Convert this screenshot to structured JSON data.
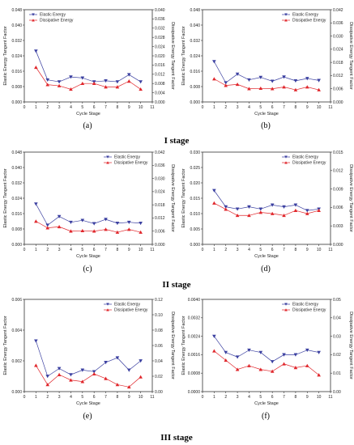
{
  "colors": {
    "elastic": "#3a3fa0",
    "dissipative": "#e0262b",
    "axis": "#333333"
  },
  "stage_labels": [
    "I stage",
    "II stage",
    "III stage"
  ],
  "panel_labels": [
    "(a)",
    "(b)",
    "(c)",
    "(d)",
    "(e)",
    "(f)"
  ],
  "chart_data": [
    {
      "panel": "(a)",
      "type": "line",
      "xlabel": "Cycle Stage",
      "ylabel_left": "Elastic Energy Tangent Factor",
      "ylabel_right": "Dissipative Energy Tangent Factor",
      "xlim": [
        0,
        11
      ],
      "xticks": [
        "0",
        "1",
        "2",
        "3",
        "4",
        "5",
        "6",
        "7",
        "8",
        "9",
        "10",
        "11"
      ],
      "ylim_left": [
        0,
        0.048
      ],
      "yticks_left": [
        "0.000",
        "0.008",
        "0.016",
        "0.024",
        "0.032",
        "0.040",
        "0.048"
      ],
      "ylim_right": [
        0,
        0.04
      ],
      "yticks_right": [
        "0.000",
        "0.004",
        "0.008",
        "0.012",
        "0.016",
        "0.020",
        "0.024",
        "0.028",
        "0.032",
        "0.036",
        "0.040"
      ],
      "legend": [
        "Elastic Energy",
        "Dissipative Energy"
      ],
      "legend_position": "top-left",
      "series": [
        {
          "name": "Elastic Energy",
          "axis": "left",
          "x": [
            1,
            2,
            3,
            4,
            5,
            6,
            7,
            8,
            9,
            10
          ],
          "values": [
            0.0265,
            0.0115,
            0.0105,
            0.013,
            0.0125,
            0.0105,
            0.011,
            0.0105,
            0.0142,
            0.0105
          ]
        },
        {
          "name": "Dissipative Energy",
          "axis": "right",
          "x": [
            1,
            2,
            3,
            4,
            5,
            6,
            7,
            8,
            9,
            10
          ],
          "values": [
            0.015,
            0.0075,
            0.007,
            0.0055,
            0.008,
            0.008,
            0.0065,
            0.0065,
            0.009,
            0.0055
          ]
        }
      ]
    },
    {
      "panel": "(b)",
      "type": "line",
      "xlabel": "Cycle Stage",
      "ylabel_left": "Elastic Energy Tangent Factor",
      "ylabel_right": "Dissipative Energy Tangent Factor",
      "xlim": [
        0,
        11
      ],
      "xticks": [
        "0",
        "1",
        "2",
        "3",
        "4",
        "5",
        "6",
        "7",
        "8",
        "9",
        "10",
        "11"
      ],
      "ylim_left": [
        0,
        0.048
      ],
      "yticks_left": [
        "0.000",
        "0.008",
        "0.016",
        "0.024",
        "0.032",
        "0.040",
        "0.048"
      ],
      "ylim_right": [
        0,
        0.042
      ],
      "yticks_right": [
        "0.000",
        "0.006",
        "0.012",
        "0.018",
        "0.024",
        "0.030",
        "0.036",
        "0.042"
      ],
      "legend": [
        "Elastic Energy",
        "Dissipative Energy"
      ],
      "legend_position": "top-right",
      "series": [
        {
          "name": "Elastic Energy",
          "axis": "left",
          "x": [
            1,
            2,
            3,
            4,
            5,
            6,
            7,
            8,
            9,
            10
          ],
          "values": [
            0.021,
            0.01,
            0.0145,
            0.0115,
            0.0128,
            0.0108,
            0.013,
            0.011,
            0.0122,
            0.0112
          ]
        },
        {
          "name": "Dissipative Energy",
          "axis": "right",
          "x": [
            1,
            2,
            3,
            4,
            5,
            6,
            7,
            8,
            9,
            10
          ],
          "values": [
            0.0105,
            0.0075,
            0.008,
            0.006,
            0.0062,
            0.006,
            0.0068,
            0.0055,
            0.0068,
            0.0055
          ]
        }
      ]
    },
    {
      "panel": "(c)",
      "type": "line",
      "xlabel": "Cycle Stage",
      "ylabel_left": "Elastic Energy Tangent Factor",
      "ylabel_right": "Dissipative Energy Tangent Factor",
      "xlim": [
        0,
        11
      ],
      "xticks": [
        "0",
        "1",
        "2",
        "3",
        "4",
        "5",
        "6",
        "7",
        "8",
        "9",
        "10",
        "11"
      ],
      "ylim_left": [
        0,
        0.048
      ],
      "yticks_left": [
        "0.000",
        "0.008",
        "0.016",
        "0.024",
        "0.032",
        "0.040",
        "0.048"
      ],
      "ylim_right": [
        0,
        0.042
      ],
      "yticks_right": [
        "0.000",
        "0.006",
        "0.012",
        "0.018",
        "0.024",
        "0.030",
        "0.036",
        "0.042"
      ],
      "legend": [
        "Elastic Energy",
        "Dissipative Energy"
      ],
      "legend_position": "top-right",
      "series": [
        {
          "name": "Elastic Energy",
          "axis": "left",
          "x": [
            1,
            2,
            3,
            4,
            5,
            6,
            7,
            8,
            9,
            10
          ],
          "values": [
            0.021,
            0.01,
            0.0145,
            0.0115,
            0.0125,
            0.0108,
            0.013,
            0.011,
            0.0115,
            0.011
          ]
        },
        {
          "name": "Dissipative Energy",
          "axis": "right",
          "x": [
            1,
            2,
            3,
            4,
            5,
            6,
            7,
            8,
            9,
            10
          ],
          "values": [
            0.0105,
            0.0075,
            0.008,
            0.006,
            0.0062,
            0.006,
            0.0068,
            0.0055,
            0.0068,
            0.0055
          ]
        }
      ]
    },
    {
      "panel": "(d)",
      "type": "line",
      "xlabel": "Cycle Stage",
      "ylabel_left": "Elastic Energy Tangent Factor",
      "ylabel_right": "Dissipative Energy Tangent Factor",
      "xlim": [
        0,
        11
      ],
      "xticks": [
        "0",
        "1",
        "2",
        "3",
        "4",
        "5",
        "6",
        "7",
        "8",
        "9",
        "10",
        "11"
      ],
      "ylim_left": [
        0,
        0.03
      ],
      "yticks_left": [
        "0.000",
        "0.005",
        "0.010",
        "0.015",
        "0.020",
        "0.025",
        "0.030"
      ],
      "ylim_right": [
        0,
        0.015
      ],
      "yticks_right": [
        "0.000",
        "0.003",
        "0.006",
        "0.009",
        "0.012",
        "0.015"
      ],
      "legend": [
        "Elastic Energy",
        "Dissipative Energy"
      ],
      "legend_position": "top-right",
      "series": [
        {
          "name": "Elastic Energy",
          "axis": "left",
          "x": [
            1,
            2,
            3,
            4,
            5,
            6,
            7,
            8,
            9,
            10
          ],
          "values": [
            0.0175,
            0.0122,
            0.0115,
            0.0122,
            0.0115,
            0.0128,
            0.0122,
            0.0128,
            0.011,
            0.0115
          ]
        },
        {
          "name": "Dissipative Energy",
          "axis": "right",
          "x": [
            1,
            2,
            3,
            4,
            5,
            6,
            7,
            8,
            9,
            10
          ],
          "values": [
            0.0067,
            0.0057,
            0.0047,
            0.0047,
            0.0052,
            0.005,
            0.0047,
            0.0055,
            0.005,
            0.0055
          ]
        }
      ]
    },
    {
      "panel": "(e)",
      "type": "line",
      "xlabel": "Cycle Stage",
      "ylabel_left": "Elastic Energy Tangent Factor",
      "ylabel_right": "Dissipative Energy Tangent Factor",
      "xlim": [
        0,
        11
      ],
      "xticks": [
        "0",
        "1",
        "2",
        "3",
        "4",
        "5",
        "6",
        "7",
        "8",
        "9",
        "10",
        "11"
      ],
      "ylim_left": [
        0,
        0.006
      ],
      "yticks_left": [
        "0.000",
        "0.002",
        "0.004",
        "0.006"
      ],
      "ylim_right": [
        0,
        0.12
      ],
      "yticks_right": [
        "0.00",
        "0.02",
        "0.04",
        "0.06",
        "0.08",
        "0.10",
        "0.12"
      ],
      "legend": [
        "Elastic Energy",
        "Dissipative Energy"
      ],
      "legend_position": "top-right",
      "series": [
        {
          "name": "Elastic Energy",
          "axis": "left",
          "x": [
            1,
            2,
            3,
            4,
            5,
            6,
            7,
            8,
            9,
            10
          ],
          "values": [
            0.0033,
            0.001,
            0.0015,
            0.0011,
            0.0014,
            0.0013,
            0.0019,
            0.0022,
            0.0014,
            0.002
          ]
        },
        {
          "name": "Dissipative Energy",
          "axis": "right",
          "x": [
            1,
            2,
            3,
            4,
            5,
            6,
            7,
            8,
            9,
            10
          ],
          "values": [
            0.034,
            0.009,
            0.022,
            0.015,
            0.013,
            0.023,
            0.017,
            0.009,
            0.006,
            0.019
          ]
        }
      ]
    },
    {
      "panel": "(f)",
      "type": "line",
      "xlabel": "Cycle Stage",
      "ylabel_left": "Elastic Energy Tangent Factor",
      "ylabel_right": "Dissipative Energy Tangent Factor",
      "xlim": [
        0,
        11
      ],
      "xticks": [
        "0",
        "1",
        "2",
        "3",
        "4",
        "5",
        "6",
        "7",
        "8",
        "9",
        "10",
        "11"
      ],
      "ylim_left": [
        0,
        0.004
      ],
      "yticks_left": [
        "0.0000",
        "0.0008",
        "0.0016",
        "0.0024",
        "0.0032",
        "0.0040"
      ],
      "ylim_right": [
        0,
        0.05
      ],
      "yticks_right": [
        "0.00",
        "0.01",
        "0.02",
        "0.03",
        "0.04",
        "0.05"
      ],
      "legend": [
        "Elastic Energy",
        "Dissipative Energy"
      ],
      "legend_position": "top-right",
      "series": [
        {
          "name": "Elastic Energy",
          "axis": "left",
          "x": [
            1,
            2,
            3,
            4,
            5,
            6,
            7,
            8,
            9,
            10
          ],
          "values": [
            0.0024,
            0.0017,
            0.0015,
            0.0018,
            0.0017,
            0.0013,
            0.0016,
            0.0016,
            0.0018,
            0.0017
          ]
        },
        {
          "name": "Dissipative Energy",
          "axis": "right",
          "x": [
            1,
            2,
            3,
            4,
            5,
            6,
            7,
            8,
            9,
            10
          ],
          "values": [
            0.022,
            0.017,
            0.012,
            0.014,
            0.012,
            0.011,
            0.015,
            0.013,
            0.014,
            0.009
          ]
        }
      ]
    }
  ]
}
